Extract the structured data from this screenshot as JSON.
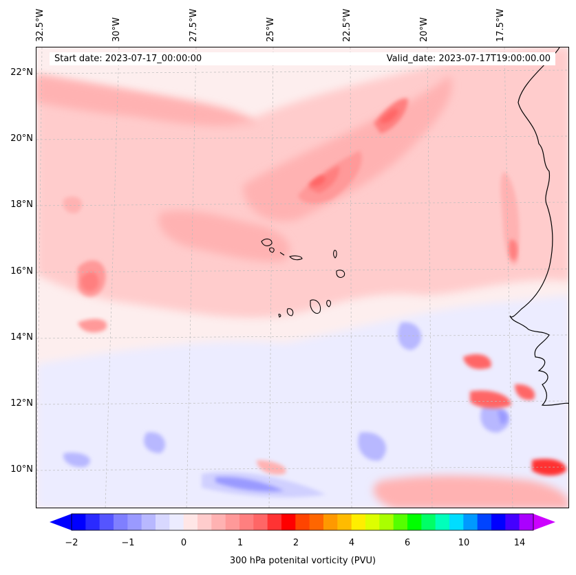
{
  "map": {
    "title_start": "Start date: 2023-07-17_00:00:00",
    "title_valid": "Valid_date: 2023-07-17T19:00:00.00",
    "lon_labels": [
      "32.5°W",
      "30°W",
      "27.5°W",
      "25°W",
      "22.5°W",
      "20°W",
      "17.5°W"
    ],
    "lat_labels": [
      "22°N",
      "20°N",
      "18°N",
      "16°N",
      "14°N",
      "12°N",
      "10°N"
    ],
    "extent": {
      "lon_min": -32.5,
      "lon_max": -15.3,
      "lat_min": 8.9,
      "lat_max": 22.8
    },
    "gridlines": true,
    "features": [
      "Cape Verde islands",
      "West African coastline"
    ]
  },
  "colorbar": {
    "label": "300 hPa potenital vorticity (PVU)",
    "tick_labels": [
      "−2",
      "−1",
      "0",
      "1",
      "2",
      "4",
      "6",
      "10",
      "14"
    ],
    "colors": [
      "#0000ff",
      "#2a2aff",
      "#5555ff",
      "#7f7fff",
      "#9a9aff",
      "#b8b8ff",
      "#d8d8ff",
      "#ececff",
      "#ffe6e6",
      "#ffcccc",
      "#ffb2b2",
      "#ff9999",
      "#ff7f7f",
      "#ff6666",
      "#ff3333",
      "#ff0000",
      "#ff4400",
      "#ff6600",
      "#ff9900",
      "#ffbb00",
      "#ffee00",
      "#ddff00",
      "#aaff00",
      "#55ff00",
      "#00ff00",
      "#00ff66",
      "#00ffbb",
      "#00ddff",
      "#0099ff",
      "#0044ff",
      "#0000ff",
      "#4400ff",
      "#aa00ff"
    ],
    "under_color": "#0000ff",
    "over_color": "#cc00ff"
  }
}
